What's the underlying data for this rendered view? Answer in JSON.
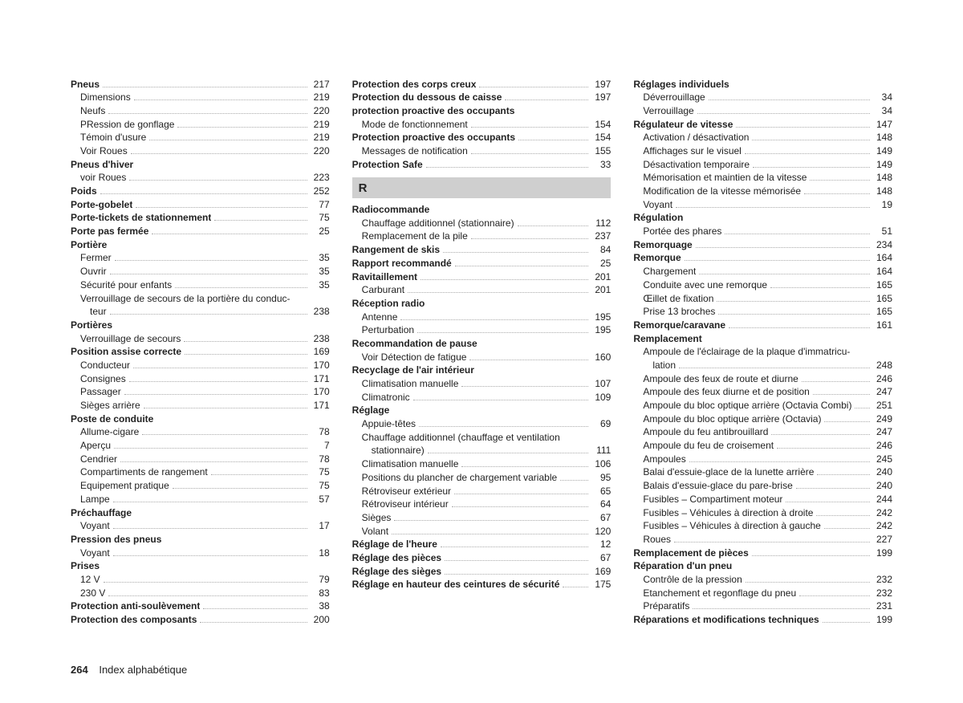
{
  "footer": {
    "page_number": "264",
    "title": "Index alphabétique"
  },
  "columns": [
    {
      "items": [
        {
          "t": "e",
          "bold": true,
          "label": "Pneus",
          "page": "217"
        },
        {
          "t": "s",
          "label": "Dimensions",
          "page": "219"
        },
        {
          "t": "s",
          "label": "Neufs",
          "page": "220"
        },
        {
          "t": "s",
          "label": "PRession de gonflage",
          "page": "219"
        },
        {
          "t": "s",
          "label": "Témoin d'usure",
          "page": "219"
        },
        {
          "t": "s",
          "label": "Voir Roues",
          "page": "220"
        },
        {
          "t": "e",
          "bold": true,
          "label": "Pneus d'hiver",
          "nopage": true
        },
        {
          "t": "s",
          "label": "voir Roues",
          "page": "223"
        },
        {
          "t": "e",
          "bold": true,
          "label": "Poids",
          "page": "252"
        },
        {
          "t": "e",
          "bold": true,
          "label": "Porte-gobelet",
          "page": "77"
        },
        {
          "t": "e",
          "bold": true,
          "label": "Porte-tickets de stationnement",
          "page": "75"
        },
        {
          "t": "e",
          "bold": true,
          "label": "Porte pas fermée",
          "page": "25"
        },
        {
          "t": "e",
          "bold": true,
          "label": "Portière",
          "nopage": true
        },
        {
          "t": "s",
          "label": "Fermer",
          "page": "35"
        },
        {
          "t": "s",
          "label": "Ouvrir",
          "page": "35"
        },
        {
          "t": "s",
          "label": "Sécurité pour enfants",
          "page": "35"
        },
        {
          "t": "s",
          "label": "Verrouillage de secours de la portière du conduc-",
          "nopage": true,
          "noleader": true
        },
        {
          "t": "ss",
          "label": "teur",
          "page": "238"
        },
        {
          "t": "e",
          "bold": true,
          "label": "Portières",
          "nopage": true
        },
        {
          "t": "s",
          "label": "Verrouillage de secours",
          "page": "238"
        },
        {
          "t": "e",
          "bold": true,
          "label": "Position assise correcte",
          "page": "169"
        },
        {
          "t": "s",
          "label": "Conducteur",
          "page": "170"
        },
        {
          "t": "s",
          "label": "Consignes",
          "page": "171"
        },
        {
          "t": "s",
          "label": "Passager",
          "page": "170"
        },
        {
          "t": "s",
          "label": "Sièges arrière",
          "page": "171"
        },
        {
          "t": "e",
          "bold": true,
          "label": "Poste de conduite",
          "nopage": true
        },
        {
          "t": "s",
          "label": "Allume-cigare",
          "page": "78"
        },
        {
          "t": "s",
          "label": "Aperçu",
          "page": "7"
        },
        {
          "t": "s",
          "label": "Cendrier",
          "page": "78"
        },
        {
          "t": "s",
          "label": "Compartiments de rangement",
          "page": "75"
        },
        {
          "t": "s",
          "label": "Equipement pratique",
          "page": "75"
        },
        {
          "t": "s",
          "label": "Lampe",
          "page": "57"
        },
        {
          "t": "e",
          "bold": true,
          "label": "Préchauffage",
          "nopage": true
        },
        {
          "t": "s",
          "label": "Voyant",
          "page": "17"
        },
        {
          "t": "e",
          "bold": true,
          "label": "Pression des pneus",
          "nopage": true
        },
        {
          "t": "s",
          "label": "Voyant",
          "page": "18"
        },
        {
          "t": "e",
          "bold": true,
          "label": "Prises",
          "nopage": true
        },
        {
          "t": "s",
          "label": "12 V",
          "page": "79"
        },
        {
          "t": "s",
          "label": "230 V",
          "page": "83"
        },
        {
          "t": "e",
          "bold": true,
          "label": "Protection anti-soulèvement",
          "page": "38"
        },
        {
          "t": "e",
          "bold": true,
          "label": "Protection des composants",
          "page": "200"
        }
      ]
    },
    {
      "items": [
        {
          "t": "e",
          "bold": true,
          "label": "Protection des corps creux",
          "page": "197"
        },
        {
          "t": "e",
          "bold": true,
          "label": "Protection du dessous de caisse",
          "page": "197"
        },
        {
          "t": "e",
          "bold": true,
          "label": "protection proactive des occupants",
          "nopage": true
        },
        {
          "t": "s",
          "label": "Mode de fonctionnement",
          "page": "154"
        },
        {
          "t": "e",
          "bold": true,
          "label": "Protection proactive des occupants",
          "page": "154"
        },
        {
          "t": "s",
          "label": "Messages de notification",
          "page": "155"
        },
        {
          "t": "e",
          "bold": true,
          "label": "Protection Safe",
          "page": "33"
        },
        {
          "t": "h",
          "label": "R"
        },
        {
          "t": "e",
          "bold": true,
          "label": "Radiocommande",
          "nopage": true
        },
        {
          "t": "s",
          "label": "Chauffage additionnel (stationnaire)",
          "page": "112"
        },
        {
          "t": "s",
          "label": "Remplacement de la pile",
          "page": "237"
        },
        {
          "t": "e",
          "bold": true,
          "label": "Rangement de skis",
          "page": "84"
        },
        {
          "t": "e",
          "bold": true,
          "label": "Rapport recommandé",
          "page": "25"
        },
        {
          "t": "e",
          "bold": true,
          "label": "Ravitaillement",
          "page": "201"
        },
        {
          "t": "s",
          "label": "Carburant",
          "page": "201"
        },
        {
          "t": "e",
          "bold": true,
          "label": "Réception radio",
          "nopage": true
        },
        {
          "t": "s",
          "label": "Antenne",
          "page": "195"
        },
        {
          "t": "s",
          "label": "Perturbation",
          "page": "195"
        },
        {
          "t": "e",
          "bold": true,
          "label": "Recommandation de pause",
          "nopage": true
        },
        {
          "t": "s",
          "label": "Voir Détection de fatigue",
          "page": "160"
        },
        {
          "t": "e",
          "bold": true,
          "label": "Recyclage de l'air intérieur",
          "nopage": true
        },
        {
          "t": "s",
          "label": "Climatisation manuelle",
          "page": "107"
        },
        {
          "t": "s",
          "label": "Climatronic",
          "page": "109"
        },
        {
          "t": "e",
          "bold": true,
          "label": "Réglage",
          "nopage": true
        },
        {
          "t": "s",
          "label": "Appuie-têtes",
          "page": "69"
        },
        {
          "t": "s",
          "label": "Chauffage additionnel (chauffage et ventilation",
          "nopage": true,
          "noleader": true
        },
        {
          "t": "ss",
          "label": "stationnaire)",
          "page": "111"
        },
        {
          "t": "s",
          "label": "Climatisation manuelle",
          "page": "106"
        },
        {
          "t": "s",
          "label": "Positions du plancher de chargement variable",
          "page": "95"
        },
        {
          "t": "s",
          "label": "Rétroviseur extérieur",
          "page": "65"
        },
        {
          "t": "s",
          "label": "Rétroviseur intérieur",
          "page": "64"
        },
        {
          "t": "s",
          "label": "Sièges",
          "page": "67"
        },
        {
          "t": "s",
          "label": "Volant",
          "page": "120"
        },
        {
          "t": "e",
          "bold": true,
          "label": "Réglage de l'heure",
          "page": "12"
        },
        {
          "t": "e",
          "bold": true,
          "label": "Réglage des pièces",
          "page": "67"
        },
        {
          "t": "e",
          "bold": true,
          "label": "Réglage des sièges",
          "page": "169"
        },
        {
          "t": "e",
          "bold": true,
          "label": "Réglage en hauteur des ceintures de sécurité",
          "page": "175"
        }
      ]
    },
    {
      "items": [
        {
          "t": "e",
          "bold": true,
          "label": "Réglages individuels",
          "nopage": true
        },
        {
          "t": "s",
          "label": "Déverrouillage",
          "page": "34"
        },
        {
          "t": "s",
          "label": "Verrouillage",
          "page": "34"
        },
        {
          "t": "e",
          "bold": true,
          "label": "Régulateur de vitesse",
          "page": "147"
        },
        {
          "t": "s",
          "label": "Activation / désactivation",
          "page": "148"
        },
        {
          "t": "s",
          "label": "Affichages sur le visuel",
          "page": "149"
        },
        {
          "t": "s",
          "label": "Désactivation temporaire",
          "page": "149"
        },
        {
          "t": "s",
          "label": "Mémorisation et maintien de la vitesse",
          "page": "148"
        },
        {
          "t": "s",
          "label": "Modification de la vitesse mémorisée",
          "page": "148"
        },
        {
          "t": "s",
          "label": "Voyant",
          "page": "19"
        },
        {
          "t": "e",
          "bold": true,
          "label": "Régulation",
          "nopage": true
        },
        {
          "t": "s",
          "label": "Portée des phares",
          "page": "51"
        },
        {
          "t": "e",
          "bold": true,
          "label": "Remorquage",
          "page": "234"
        },
        {
          "t": "e",
          "bold": true,
          "label": "Remorque",
          "page": "164"
        },
        {
          "t": "s",
          "label": "Chargement",
          "page": "164"
        },
        {
          "t": "s",
          "label": "Conduite avec une remorque",
          "page": "165"
        },
        {
          "t": "s",
          "label": "Œillet de fixation",
          "page": "165"
        },
        {
          "t": "s",
          "label": "Prise 13 broches",
          "page": "165"
        },
        {
          "t": "e",
          "bold": true,
          "label": "Remorque/caravane",
          "page": "161"
        },
        {
          "t": "e",
          "bold": true,
          "label": "Remplacement",
          "nopage": true
        },
        {
          "t": "s",
          "label": "Ampoule de l'éclairage de la plaque d'immatricu-",
          "nopage": true,
          "noleader": true
        },
        {
          "t": "ss",
          "label": "lation",
          "page": "248"
        },
        {
          "t": "s",
          "label": "Ampoule des feux de route et diurne",
          "page": "246"
        },
        {
          "t": "s",
          "label": "Ampoule des feux diurne et de position",
          "page": "247"
        },
        {
          "t": "s",
          "label": "Ampoule du bloc optique arrière (Octavia Combi)",
          "page": "251"
        },
        {
          "t": "s",
          "label": "Ampoule du bloc optique arrière (Octavia)",
          "page": "249"
        },
        {
          "t": "s",
          "label": "Ampoule du feu antibrouillard",
          "page": "247"
        },
        {
          "t": "s",
          "label": "Ampoule du feu de croisement",
          "page": "246"
        },
        {
          "t": "s",
          "label": "Ampoules",
          "page": "245"
        },
        {
          "t": "s",
          "label": "Balai d'essuie-glace de la lunette arrière",
          "page": "240"
        },
        {
          "t": "s",
          "label": "Balais d'essuie-glace du pare-brise",
          "page": "240"
        },
        {
          "t": "s",
          "label": "Fusibles – Compartiment moteur",
          "page": "244"
        },
        {
          "t": "s",
          "label": "Fusibles – Véhicules à direction à droite",
          "page": "242"
        },
        {
          "t": "s",
          "label": "Fusibles – Véhicules à direction à gauche",
          "page": "242"
        },
        {
          "t": "s",
          "label": "Roues",
          "page": "227"
        },
        {
          "t": "e",
          "bold": true,
          "label": "Remplacement de pièces",
          "page": "199"
        },
        {
          "t": "e",
          "bold": true,
          "label": "Réparation d'un pneu",
          "nopage": true
        },
        {
          "t": "s",
          "label": "Contrôle de la pression",
          "page": "232"
        },
        {
          "t": "s",
          "label": "Etanchement et regonflage du pneu",
          "page": "232"
        },
        {
          "t": "s",
          "label": "Préparatifs",
          "page": "231"
        },
        {
          "t": "e",
          "bold": true,
          "label": "Réparations et modifications techniques",
          "page": "199"
        }
      ]
    }
  ]
}
